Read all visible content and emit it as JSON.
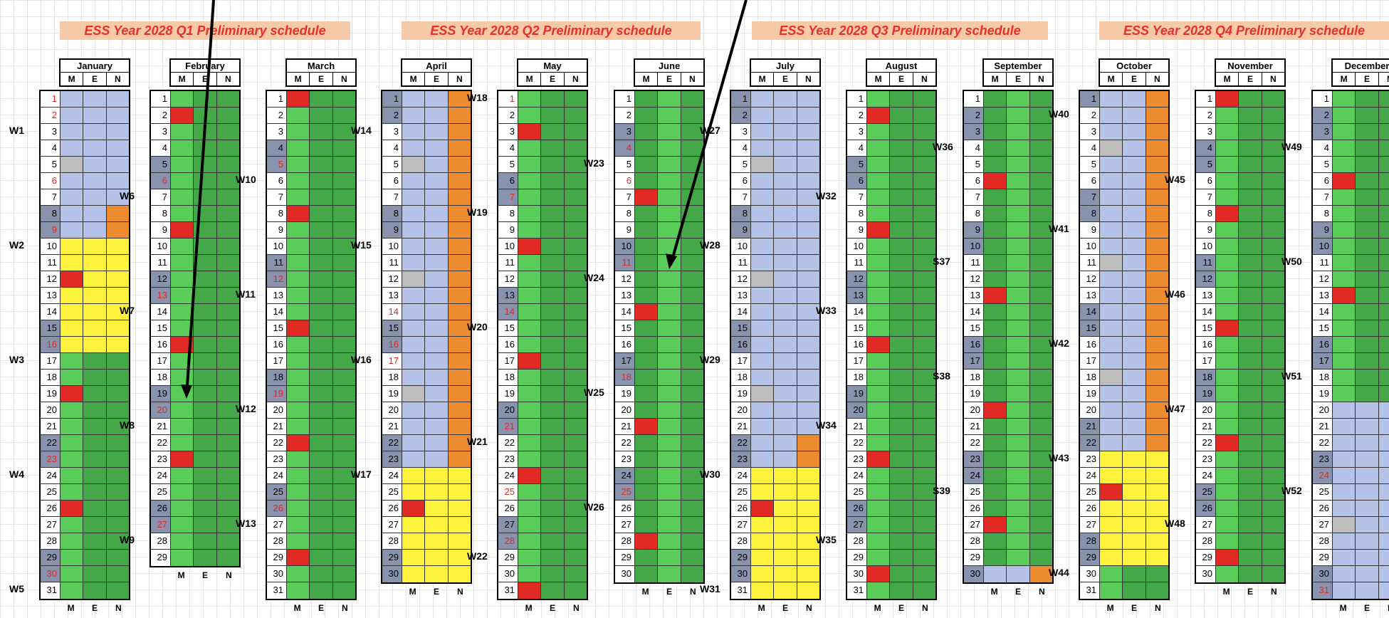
{
  "title_bars": [
    "ESS Year 2028 Q1 Preliminary schedule",
    "ESS Year 2028 Q2 Preliminary schedule",
    "ESS Year 2028 Q3 Preliminary schedule",
    "ESS Year 2028 Q4 Preliminary schedule"
  ],
  "shift_labels": [
    "M",
    "E",
    "N"
  ],
  "legend_colors": {
    "blue": "#b3c2e6",
    "green": "#59cc59",
    "dark_green": "#44a748",
    "yellow": "#fff23d",
    "orange": "#ee8a2f",
    "red": "#e02a23",
    "grey": "#bdbdbd",
    "weekend_day": "#8a93ad"
  },
  "months": [
    {
      "name": "January",
      "days": 31,
      "weekends": [
        8,
        9,
        15,
        16,
        22,
        23,
        29,
        30
      ],
      "red_days": [
        1,
        2,
        6,
        9,
        16,
        23,
        30
      ],
      "weeks": [
        {
          "label": "W1",
          "day": 3
        },
        {
          "label": "W2",
          "day": 10
        },
        {
          "label": "W3",
          "day": 17
        },
        {
          "label": "W4",
          "day": 24
        },
        {
          "label": "W5",
          "day": 31
        }
      ]
    },
    {
      "name": "February",
      "days": 29,
      "weekends": [
        5,
        6,
        12,
        13,
        19,
        20,
        26,
        27
      ],
      "red_days": [
        6,
        13,
        20,
        27
      ],
      "weeks": [
        {
          "label": "W6",
          "day": 7
        },
        {
          "label": "W7",
          "day": 14
        },
        {
          "label": "W8",
          "day": 21
        },
        {
          "label": "W9",
          "day": 28
        }
      ]
    },
    {
      "name": "March",
      "days": 31,
      "weekends": [
        4,
        5,
        11,
        12,
        18,
        19,
        25,
        26
      ],
      "red_days": [
        5,
        12,
        19,
        26
      ],
      "weeks": [
        {
          "label": "W10",
          "day": 6
        },
        {
          "label": "W11",
          "day": 13
        },
        {
          "label": "W12",
          "day": 20
        },
        {
          "label": "W13",
          "day": 27
        }
      ]
    },
    {
      "name": "April",
      "days": 30,
      "weekends": [
        1,
        2,
        8,
        9,
        15,
        16,
        22,
        23,
        29,
        30
      ],
      "red_days": [
        14,
        16,
        17
      ],
      "weeks": [
        {
          "label": "W14",
          "day": 3
        },
        {
          "label": "W15",
          "day": 10
        },
        {
          "label": "W16",
          "day": 17
        },
        {
          "label": "W17",
          "day": 24
        }
      ]
    },
    {
      "name": "May",
      "days": 31,
      "weekends": [
        6,
        7,
        13,
        14,
        20,
        21,
        27,
        28
      ],
      "red_days": [
        1,
        7,
        14,
        21,
        25,
        28
      ],
      "weeks": [
        {
          "label": "W18",
          "day": 1
        },
        {
          "label": "W19",
          "day": 8
        },
        {
          "label": "W20",
          "day": 15
        },
        {
          "label": "W21",
          "day": 22
        },
        {
          "label": "W22",
          "day": 29
        }
      ]
    },
    {
      "name": "June",
      "days": 30,
      "weekends": [
        3,
        4,
        10,
        11,
        17,
        18,
        24,
        25
      ],
      "red_days": [
        4,
        6,
        11,
        18,
        25
      ],
      "weeks": [
        {
          "label": "W23",
          "day": 5
        },
        {
          "label": "W24",
          "day": 12
        },
        {
          "label": "W25",
          "day": 19
        },
        {
          "label": "W26",
          "day": 26
        }
      ]
    },
    {
      "name": "July",
      "days": 31,
      "weekends": [
        1,
        2,
        8,
        9,
        15,
        16,
        22,
        23,
        29,
        30
      ],
      "red_days": [],
      "weeks": [
        {
          "label": "W27",
          "day": 3
        },
        {
          "label": "W28",
          "day": 10
        },
        {
          "label": "W29",
          "day": 17
        },
        {
          "label": "W30",
          "day": 24
        },
        {
          "label": "W31",
          "day": 31
        }
      ]
    },
    {
      "name": "August",
      "days": 31,
      "weekends": [
        5,
        6,
        12,
        13,
        19,
        20,
        26,
        27
      ],
      "red_days": [],
      "weeks": [
        {
          "label": "W32",
          "day": 7
        },
        {
          "label": "W33",
          "day": 14
        },
        {
          "label": "W34",
          "day": 21
        },
        {
          "label": "W35",
          "day": 28
        }
      ]
    },
    {
      "name": "September",
      "days": 30,
      "weekends": [
        2,
        3,
        9,
        10,
        16,
        17,
        23,
        24,
        30
      ],
      "red_days": [],
      "weeks": [
        {
          "label": "W36",
          "day": 4
        },
        {
          "label": "S37",
          "day": 11
        },
        {
          "label": "S38",
          "day": 18
        },
        {
          "label": "S39",
          "day": 25
        }
      ]
    },
    {
      "name": "October",
      "days": 31,
      "weekends": [
        1,
        7,
        8,
        14,
        15,
        21,
        22,
        28,
        29
      ],
      "red_days": [],
      "weeks": [
        {
          "label": "W40",
          "day": 2
        },
        {
          "label": "W41",
          "day": 9
        },
        {
          "label": "W42",
          "day": 16
        },
        {
          "label": "W43",
          "day": 23
        },
        {
          "label": "W44",
          "day": 30
        }
      ]
    },
    {
      "name": "November",
      "days": 30,
      "weekends": [
        4,
        5,
        11,
        12,
        18,
        19,
        25,
        26
      ],
      "red_days": [],
      "weeks": [
        {
          "label": "W45",
          "day": 6
        },
        {
          "label": "W46",
          "day": 13
        },
        {
          "label": "W47",
          "day": 20
        },
        {
          "label": "W48",
          "day": 27
        }
      ]
    },
    {
      "name": "December",
      "days": 31,
      "weekends": [
        2,
        3,
        9,
        10,
        16,
        17,
        23,
        24,
        30,
        31
      ],
      "red_days": [
        24,
        31
      ],
      "weeks": [
        {
          "label": "W49",
          "day": 4
        },
        {
          "label": "W50",
          "day": 11
        },
        {
          "label": "W51",
          "day": 18
        },
        {
          "label": "W52",
          "day": 25
        }
      ]
    }
  ],
  "schedule": [
    {
      "month": "January",
      "segments": [
        {
          "from": 1,
          "to": 9,
          "cols": "bbb"
        },
        {
          "from": 10,
          "to": 16,
          "cols": "yyy"
        },
        {
          "from": 17,
          "to": 31,
          "cols": "gGG"
        }
      ],
      "overrides": [
        {
          "day": 5,
          "col": 0,
          "c": "s"
        },
        {
          "day": 8,
          "col": 2,
          "c": "o"
        },
        {
          "day": 9,
          "col": 2,
          "c": "o"
        },
        {
          "day": 12,
          "col": 0,
          "c": "r"
        },
        {
          "day": 19,
          "col": 0,
          "c": "r"
        },
        {
          "day": 26,
          "col": 0,
          "c": "r"
        }
      ]
    },
    {
      "month": "February",
      "segments": [
        {
          "from": 1,
          "to": 29,
          "cols": "gGG"
        }
      ],
      "overrides": [
        {
          "day": 2,
          "col": 0,
          "c": "r"
        },
        {
          "day": 9,
          "col": 0,
          "c": "r"
        },
        {
          "day": 16,
          "col": 0,
          "c": "r"
        },
        {
          "day": 23,
          "col": 0,
          "c": "r"
        }
      ]
    },
    {
      "month": "March",
      "segments": [
        {
          "from": 1,
          "to": 31,
          "cols": "gGG"
        }
      ],
      "overrides": [
        {
          "day": 1,
          "col": 0,
          "c": "r"
        },
        {
          "day": 8,
          "col": 0,
          "c": "r"
        },
        {
          "day": 15,
          "col": 0,
          "c": "r"
        },
        {
          "day": 22,
          "col": 0,
          "c": "r"
        },
        {
          "day": 29,
          "col": 0,
          "c": "r"
        }
      ]
    },
    {
      "month": "April",
      "segments": [
        {
          "from": 1,
          "to": 23,
          "cols": "bbo"
        },
        {
          "from": 24,
          "to": 30,
          "cols": "yyy"
        }
      ],
      "overrides": [
        {
          "day": 5,
          "col": 0,
          "c": "s"
        },
        {
          "day": 12,
          "col": 0,
          "c": "s"
        },
        {
          "day": 19,
          "col": 0,
          "c": "s"
        },
        {
          "day": 26,
          "col": 0,
          "c": "r"
        }
      ]
    },
    {
      "month": "May",
      "segments": [
        {
          "from": 1,
          "to": 31,
          "cols": "gGG"
        }
      ],
      "overrides": [
        {
          "day": 3,
          "col": 0,
          "c": "r"
        },
        {
          "day": 10,
          "col": 0,
          "c": "r"
        },
        {
          "day": 17,
          "col": 0,
          "c": "r"
        },
        {
          "day": 24,
          "col": 0,
          "c": "r"
        },
        {
          "day": 31,
          "col": 0,
          "c": "r"
        }
      ]
    },
    {
      "month": "June",
      "segments": [
        {
          "from": 1,
          "to": 30,
          "cols": "GgG"
        }
      ],
      "overrides": [
        {
          "day": 7,
          "col": 0,
          "c": "r"
        },
        {
          "day": 14,
          "col": 0,
          "c": "r"
        },
        {
          "day": 21,
          "col": 0,
          "c": "r"
        },
        {
          "day": 28,
          "col": 0,
          "c": "r"
        }
      ]
    },
    {
      "month": "July",
      "segments": [
        {
          "from": 1,
          "to": 21,
          "cols": "bbb"
        },
        {
          "from": 22,
          "to": 23,
          "cols": "bbo"
        },
        {
          "from": 24,
          "to": 31,
          "cols": "yyy"
        }
      ],
      "overrides": [
        {
          "day": 5,
          "col": 0,
          "c": "s"
        },
        {
          "day": 12,
          "col": 0,
          "c": "s"
        },
        {
          "day": 19,
          "col": 0,
          "c": "s"
        },
        {
          "day": 26,
          "col": 0,
          "c": "r"
        }
      ]
    },
    {
      "month": "August",
      "segments": [
        {
          "from": 1,
          "to": 31,
          "cols": "gGG"
        }
      ],
      "overrides": [
        {
          "day": 2,
          "col": 0,
          "c": "r"
        },
        {
          "day": 9,
          "col": 0,
          "c": "r"
        },
        {
          "day": 16,
          "col": 0,
          "c": "r"
        },
        {
          "day": 23,
          "col": 0,
          "c": "r"
        },
        {
          "day": 30,
          "col": 0,
          "c": "r"
        }
      ]
    },
    {
      "month": "September",
      "segments": [
        {
          "from": 1,
          "to": 29,
          "cols": "GgG"
        },
        {
          "from": 30,
          "to": 30,
          "cols": "bbo"
        }
      ],
      "overrides": [
        {
          "day": 6,
          "col": 0,
          "c": "r"
        },
        {
          "day": 13,
          "col": 0,
          "c": "r"
        },
        {
          "day": 20,
          "col": 0,
          "c": "r"
        },
        {
          "day": 27,
          "col": 0,
          "c": "r"
        }
      ]
    },
    {
      "month": "October",
      "segments": [
        {
          "from": 1,
          "to": 22,
          "cols": "bbo"
        },
        {
          "from": 23,
          "to": 29,
          "cols": "yyy"
        },
        {
          "from": 30,
          "to": 31,
          "cols": "gGG"
        }
      ],
      "overrides": [
        {
          "day": 4,
          "col": 0,
          "c": "s"
        },
        {
          "day": 11,
          "col": 0,
          "c": "s"
        },
        {
          "day": 18,
          "col": 0,
          "c": "s"
        },
        {
          "day": 25,
          "col": 0,
          "c": "r"
        }
      ]
    },
    {
      "month": "November",
      "segments": [
        {
          "from": 1,
          "to": 30,
          "cols": "gGG"
        }
      ],
      "overrides": [
        {
          "day": 1,
          "col": 0,
          "c": "r"
        },
        {
          "day": 8,
          "col": 0,
          "c": "r"
        },
        {
          "day": 15,
          "col": 0,
          "c": "r"
        },
        {
          "day": 22,
          "col": 0,
          "c": "r"
        },
        {
          "day": 29,
          "col": 0,
          "c": "r"
        }
      ]
    },
    {
      "month": "December",
      "segments": [
        {
          "from": 1,
          "to": 19,
          "cols": "gGG"
        },
        {
          "from": 20,
          "to": 31,
          "cols": "bbb"
        }
      ],
      "overrides": [
        {
          "day": 6,
          "col": 0,
          "c": "r"
        },
        {
          "day": 13,
          "col": 0,
          "c": "r"
        },
        {
          "day": 27,
          "col": 0,
          "c": "s"
        }
      ]
    }
  ]
}
